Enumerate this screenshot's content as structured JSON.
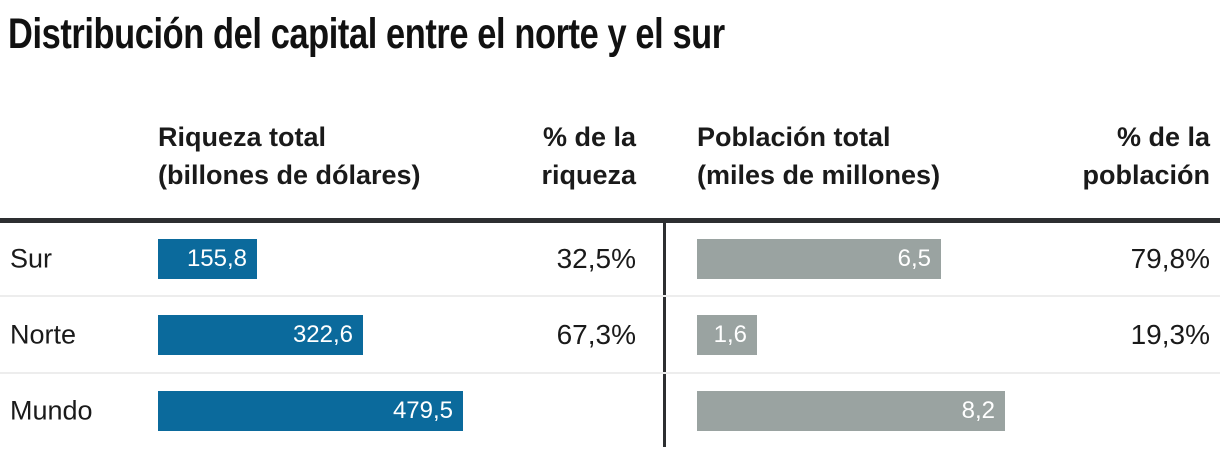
{
  "title": "Distribución del capital entre el norte y el sur",
  "headers": {
    "wealth": {
      "line1": "Riqueza total",
      "line2": "(billones de dólares)"
    },
    "wealth_pct": {
      "line1": "% de la",
      "line2": "riqueza"
    },
    "population": {
      "line1": "Población total",
      "line2": "(miles de millones)"
    },
    "population_pct": {
      "line1": "% de la",
      "line2": "población"
    }
  },
  "rows": [
    {
      "label": "Sur",
      "wealth": 155.8,
      "wealth_display": "155,8",
      "wealth_pct": "32,5%",
      "population": 6.5,
      "population_display": "6,5",
      "population_pct": "79,8%"
    },
    {
      "label": "Norte",
      "wealth": 322.6,
      "wealth_display": "322,6",
      "wealth_pct": "67,3%",
      "population": 1.6,
      "population_display": "1,6",
      "population_pct": "19,3%"
    },
    {
      "label": "Mundo",
      "wealth": 479.5,
      "wealth_display": "479,5",
      "wealth_pct": "",
      "population": 8.2,
      "population_display": "8,2",
      "population_pct": ""
    }
  ],
  "colors": {
    "wealth_bar": "#0b6a9c",
    "population_bar": "#9aa3a1",
    "rule": "#2d2f31",
    "divider": "#ededed",
    "text": "#1a1a1a"
  },
  "chart_data": {
    "type": "bar",
    "orientation": "horizontal",
    "title": "Distribución del capital entre el norte y el sur",
    "categories": [
      "Sur",
      "Norte",
      "Mundo"
    ],
    "series": [
      {
        "name": "Riqueza total (billones de dólares)",
        "values": [
          155.8,
          322.6,
          479.5
        ],
        "color": "#0b6a9c"
      },
      {
        "name": "% de la riqueza",
        "values": [
          32.5,
          67.3,
          null
        ]
      },
      {
        "name": "Población total (miles de millones)",
        "values": [
          6.5,
          1.6,
          8.2
        ],
        "color": "#9aa3a1"
      },
      {
        "name": "% de la población",
        "values": [
          79.8,
          19.3,
          null
        ]
      }
    ],
    "layout": "table with two horizontal bar columns; value labels right-aligned inside bars; percent columns right-aligned; grid off; no legend"
  }
}
